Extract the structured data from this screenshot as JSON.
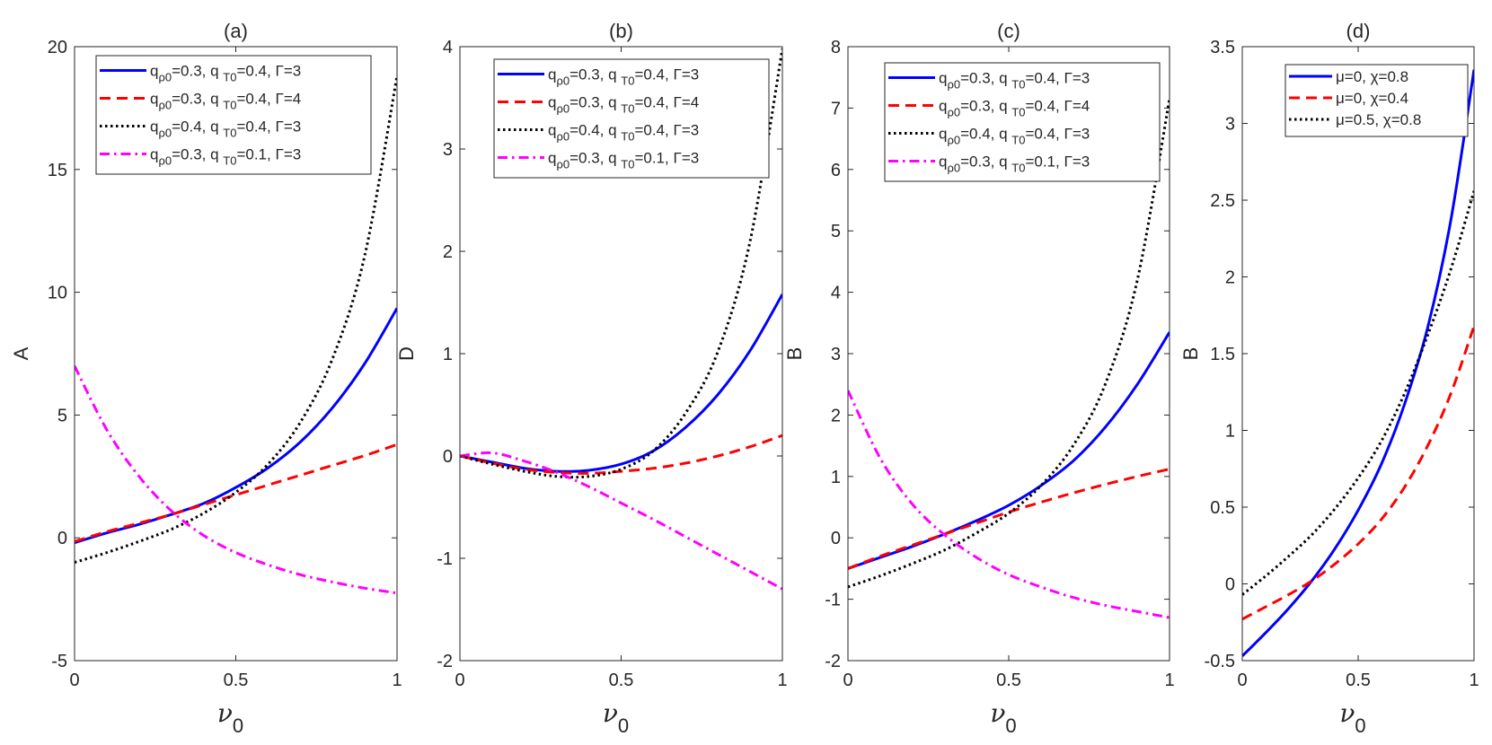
{
  "chart_data": [
    {
      "type": "line",
      "title": "(a)",
      "ylabel": "A",
      "xlabel": "ν",
      "xlabel_sub": "0",
      "xlim": [
        0,
        1
      ],
      "ylim": [
        -5,
        20
      ],
      "xticks": [
        0,
        0.5,
        1
      ],
      "xtick_labels": [
        "0",
        "0.5",
        "1"
      ],
      "yticks": [
        -5,
        0,
        5,
        10,
        15,
        20
      ],
      "ytick_labels": [
        "-5",
        "0",
        "5",
        "10",
        "15",
        "20"
      ],
      "legend_position": "top",
      "series": [
        {
          "name": "q ρ0=0.3, q T0=0.4, Γ=3",
          "legend": {
            "p1": "q",
            "s1": "ρ0",
            "p2": "=0.3, q ",
            "s2": "T0",
            "p3": "=0.4,   Γ=3"
          },
          "color": "#0000ff",
          "style": "solid",
          "x": [
            0,
            0.1,
            0.2,
            0.3,
            0.4,
            0.5,
            0.6,
            0.7,
            0.8,
            0.9,
            1.0
          ],
          "values": [
            -0.2,
            0.2,
            0.55,
            0.95,
            1.4,
            2.05,
            2.85,
            3.9,
            5.3,
            7.1,
            9.35
          ]
        },
        {
          "name": "q ρ0=0.3, q T0=0.4, Γ=4",
          "legend": {
            "p1": "q",
            "s1": "ρ0",
            "p2": "=0.3, q ",
            "s2": "T0",
            "p3": "=0.4,   Γ=4"
          },
          "color": "#ff0000",
          "style": "dashed",
          "x": [
            0,
            0.1,
            0.2,
            0.3,
            0.4,
            0.5,
            0.6,
            0.7,
            0.8,
            0.9,
            1.0
          ],
          "values": [
            -0.15,
            0.25,
            0.6,
            0.95,
            1.35,
            1.75,
            2.15,
            2.55,
            2.95,
            3.35,
            3.8
          ]
        },
        {
          "name": "q ρ0=0.4, q T0=0.4, Γ=3",
          "legend": {
            "p1": "q",
            "s1": "ρ0",
            "p2": "=0.4, q ",
            "s2": "T0",
            "p3": "=0.4,   Γ=3"
          },
          "color": "#000000",
          "style": "dotted",
          "x": [
            0,
            0.1,
            0.2,
            0.3,
            0.4,
            0.5,
            0.6,
            0.7,
            0.8,
            0.9,
            1.0
          ],
          "values": [
            -1.0,
            -0.6,
            -0.15,
            0.35,
            1.0,
            1.85,
            3.0,
            4.7,
            7.3,
            11.5,
            18.8
          ]
        },
        {
          "name": "q ρ0=0.3, q T0=0.1, Γ=3",
          "legend": {
            "p1": "q",
            "s1": "ρ0",
            "p2": "=0.3, q ",
            "s2": "T0",
            "p3": "=0.1,   Γ=3"
          },
          "color": "#ff00ff",
          "style": "dashdot",
          "x": [
            0,
            0.1,
            0.2,
            0.3,
            0.4,
            0.5,
            0.6,
            0.7,
            0.8,
            0.9,
            1.0
          ],
          "values": [
            7.0,
            4.4,
            2.5,
            1.1,
            0.1,
            -0.6,
            -1.1,
            -1.5,
            -1.8,
            -2.05,
            -2.25
          ]
        }
      ]
    },
    {
      "type": "line",
      "title": "(b)",
      "ylabel": "D",
      "xlabel": "ν",
      "xlabel_sub": "0",
      "xlim": [
        0,
        1
      ],
      "ylim": [
        -2,
        4
      ],
      "xticks": [
        0,
        0.5,
        1
      ],
      "xtick_labels": [
        "0",
        "0.5",
        "1"
      ],
      "yticks": [
        -2,
        -1,
        0,
        1,
        2,
        3,
        4
      ],
      "ytick_labels": [
        "-2",
        "-1",
        "0",
        "1",
        "2",
        "3",
        "4"
      ],
      "legend_position": "top",
      "series": [
        {
          "name": "q ρ0=0.3, q T0=0.4, Γ=3",
          "legend": {
            "p1": "q",
            "s1": "ρ0",
            "p2": "=0.3, q ",
            "s2": "T0",
            "p3": "=0.4,   Γ=3"
          },
          "color": "#0000ff",
          "style": "solid",
          "x": [
            0,
            0.1,
            0.2,
            0.3,
            0.4,
            0.5,
            0.6,
            0.7,
            0.8,
            0.9,
            1.0
          ],
          "values": [
            0,
            -0.06,
            -0.12,
            -0.15,
            -0.14,
            -0.08,
            0.05,
            0.28,
            0.6,
            1.03,
            1.58
          ]
        },
        {
          "name": "q ρ0=0.3, q T0=0.4, Γ=4",
          "legend": {
            "p1": "q",
            "s1": "ρ0",
            "p2": "=0.3, q ",
            "s2": "T0",
            "p3": "=0.4,   Γ=4"
          },
          "color": "#ff0000",
          "style": "dashed",
          "x": [
            0,
            0.1,
            0.2,
            0.3,
            0.4,
            0.5,
            0.6,
            0.7,
            0.8,
            0.9,
            1.0
          ],
          "values": [
            0,
            -0.07,
            -0.13,
            -0.16,
            -0.17,
            -0.15,
            -0.12,
            -0.07,
            0.0,
            0.09,
            0.2
          ]
        },
        {
          "name": "q ρ0=0.4, q T0=0.4, Γ=3",
          "legend": {
            "p1": "q",
            "s1": "ρ0",
            "p2": "=0.4, q ",
            "s2": "T0",
            "p3": "=0.4,   Γ=3"
          },
          "color": "#000000",
          "style": "dotted",
          "x": [
            0,
            0.1,
            0.2,
            0.3,
            0.4,
            0.5,
            0.6,
            0.7,
            0.8,
            0.9,
            1.0
          ],
          "values": [
            0,
            -0.08,
            -0.15,
            -0.2,
            -0.2,
            -0.13,
            0.05,
            0.42,
            1.02,
            2.1,
            3.98
          ]
        },
        {
          "name": "q ρ0=0.3, q T0=0.1, Γ=3",
          "legend": {
            "p1": "q",
            "s1": "ρ0",
            "p2": "=0.3, q ",
            "s2": "T0",
            "p3": "=0.1,   Γ=3"
          },
          "color": "#ff00ff",
          "style": "dashdot",
          "x": [
            0,
            0.1,
            0.2,
            0.3,
            0.4,
            0.5,
            0.6,
            0.7,
            0.8,
            0.9,
            1.0
          ],
          "values": [
            0,
            0.03,
            -0.05,
            -0.16,
            -0.3,
            -0.46,
            -0.62,
            -0.79,
            -0.96,
            -1.13,
            -1.3
          ]
        }
      ]
    },
    {
      "type": "line",
      "title": "(c)",
      "ylabel": "B",
      "xlabel": "ν",
      "xlabel_sub": "0",
      "xlim": [
        0,
        1
      ],
      "ylim": [
        -2,
        8
      ],
      "xticks": [
        0,
        0.5,
        1
      ],
      "xtick_labels": [
        "0",
        "0.5",
        "1"
      ],
      "yticks": [
        -2,
        -1,
        0,
        1,
        2,
        3,
        4,
        5,
        6,
        7,
        8
      ],
      "ytick_labels": [
        "-2",
        "-1",
        "0",
        "1",
        "2",
        "3",
        "4",
        "5",
        "6",
        "7",
        "8"
      ],
      "legend_position": "top",
      "series": [
        {
          "name": "q ρ0=0.3, q T0=0.4, Γ=3",
          "legend": {
            "p1": "q",
            "s1": "ρ0",
            "p2": "=0.3, q ",
            "s2": "T0",
            "p3": "=0.4,   Γ=3"
          },
          "color": "#0000ff",
          "style": "solid",
          "x": [
            0,
            0.1,
            0.2,
            0.3,
            0.4,
            0.5,
            0.6,
            0.7,
            0.8,
            0.9,
            1.0
          ],
          "values": [
            -0.5,
            -0.32,
            -0.14,
            0.06,
            0.28,
            0.53,
            0.85,
            1.25,
            1.8,
            2.5,
            3.35
          ]
        },
        {
          "name": "q ρ0=0.3, q T0=0.4, Γ=4",
          "legend": {
            "p1": "q",
            "s1": "ρ0",
            "p2": "=0.3, q ",
            "s2": "T0",
            "p3": "=0.4,   Γ=4"
          },
          "color": "#ff0000",
          "style": "dashed",
          "x": [
            0,
            0.1,
            0.2,
            0.3,
            0.4,
            0.5,
            0.6,
            0.7,
            0.8,
            0.9,
            1.0
          ],
          "values": [
            -0.5,
            -0.3,
            -0.12,
            0.06,
            0.24,
            0.42,
            0.58,
            0.73,
            0.87,
            1.0,
            1.12
          ]
        },
        {
          "name": "q ρ0=0.4, q T0=0.4, Γ=3",
          "legend": {
            "p1": "q",
            "s1": "ρ0",
            "p2": "=0.4, q ",
            "s2": "T0",
            "p3": "=0.4,   Γ=3"
          },
          "color": "#000000",
          "style": "dotted",
          "x": [
            0,
            0.1,
            0.2,
            0.3,
            0.4,
            0.5,
            0.6,
            0.7,
            0.8,
            0.9,
            1.0
          ],
          "values": [
            -0.8,
            -0.62,
            -0.42,
            -0.2,
            0.08,
            0.4,
            0.85,
            1.5,
            2.5,
            4.2,
            7.15
          ]
        },
        {
          "name": "q ρ0=0.3, q T0=0.1, Γ=3",
          "legend": {
            "p1": "q",
            "s1": "ρ0",
            "p2": "=0.3, q ",
            "s2": "T0",
            "p3": "=0.1,   Γ=3"
          },
          "color": "#ff00ff",
          "style": "dashdot",
          "x": [
            0,
            0.1,
            0.2,
            0.3,
            0.4,
            0.5,
            0.6,
            0.7,
            0.8,
            0.9,
            1.0
          ],
          "values": [
            2.4,
            1.3,
            0.55,
            0.05,
            -0.32,
            -0.6,
            -0.8,
            -0.97,
            -1.1,
            -1.2,
            -1.3
          ]
        }
      ]
    },
    {
      "type": "line",
      "title": "(d)",
      "ylabel": "B",
      "xlabel": "ν",
      "xlabel_sub": "0",
      "xlim": [
        0,
        1
      ],
      "ylim": [
        -0.5,
        3.5
      ],
      "xticks": [
        0,
        0.5,
        1
      ],
      "xtick_labels": [
        "0",
        "0.5",
        "1"
      ],
      "yticks": [
        -0.5,
        0,
        0.5,
        1,
        1.5,
        2,
        2.5,
        3,
        3.5
      ],
      "ytick_labels": [
        "-0.5",
        "0",
        "0.5",
        "1",
        "1.5",
        "2",
        "2.5",
        "3",
        "3.5"
      ],
      "legend_position": "top-right",
      "series": [
        {
          "name": "μ=0, χ=0.8",
          "legend": {
            "p1": "μ=0,   χ=0.8"
          },
          "color": "#0000ff",
          "style": "solid",
          "x": [
            0,
            0.1,
            0.2,
            0.3,
            0.4,
            0.5,
            0.6,
            0.7,
            0.8,
            0.9,
            1.0
          ],
          "values": [
            -0.47,
            -0.32,
            -0.16,
            0.02,
            0.23,
            0.48,
            0.78,
            1.17,
            1.67,
            2.37,
            3.35
          ]
        },
        {
          "name": "μ=0, χ=0.4",
          "legend": {
            "p1": "μ=0,   χ=0.4"
          },
          "color": "#ff0000",
          "style": "dashed",
          "x": [
            0,
            0.1,
            0.2,
            0.3,
            0.4,
            0.5,
            0.6,
            0.7,
            0.8,
            0.9,
            1.0
          ],
          "values": [
            -0.23,
            -0.15,
            -0.07,
            0.02,
            0.13,
            0.26,
            0.42,
            0.63,
            0.9,
            1.24,
            1.68
          ]
        },
        {
          "name": "μ=0.5, χ=0.8",
          "legend": {
            "p1": "μ=0.5,   χ=0.8"
          },
          "color": "#000000",
          "style": "dotted",
          "x": [
            0,
            0.1,
            0.2,
            0.3,
            0.4,
            0.5,
            0.6,
            0.7,
            0.8,
            0.9,
            1.0
          ],
          "values": [
            -0.07,
            0.05,
            0.18,
            0.32,
            0.49,
            0.69,
            0.93,
            1.24,
            1.62,
            2.05,
            2.56
          ]
        }
      ]
    }
  ]
}
